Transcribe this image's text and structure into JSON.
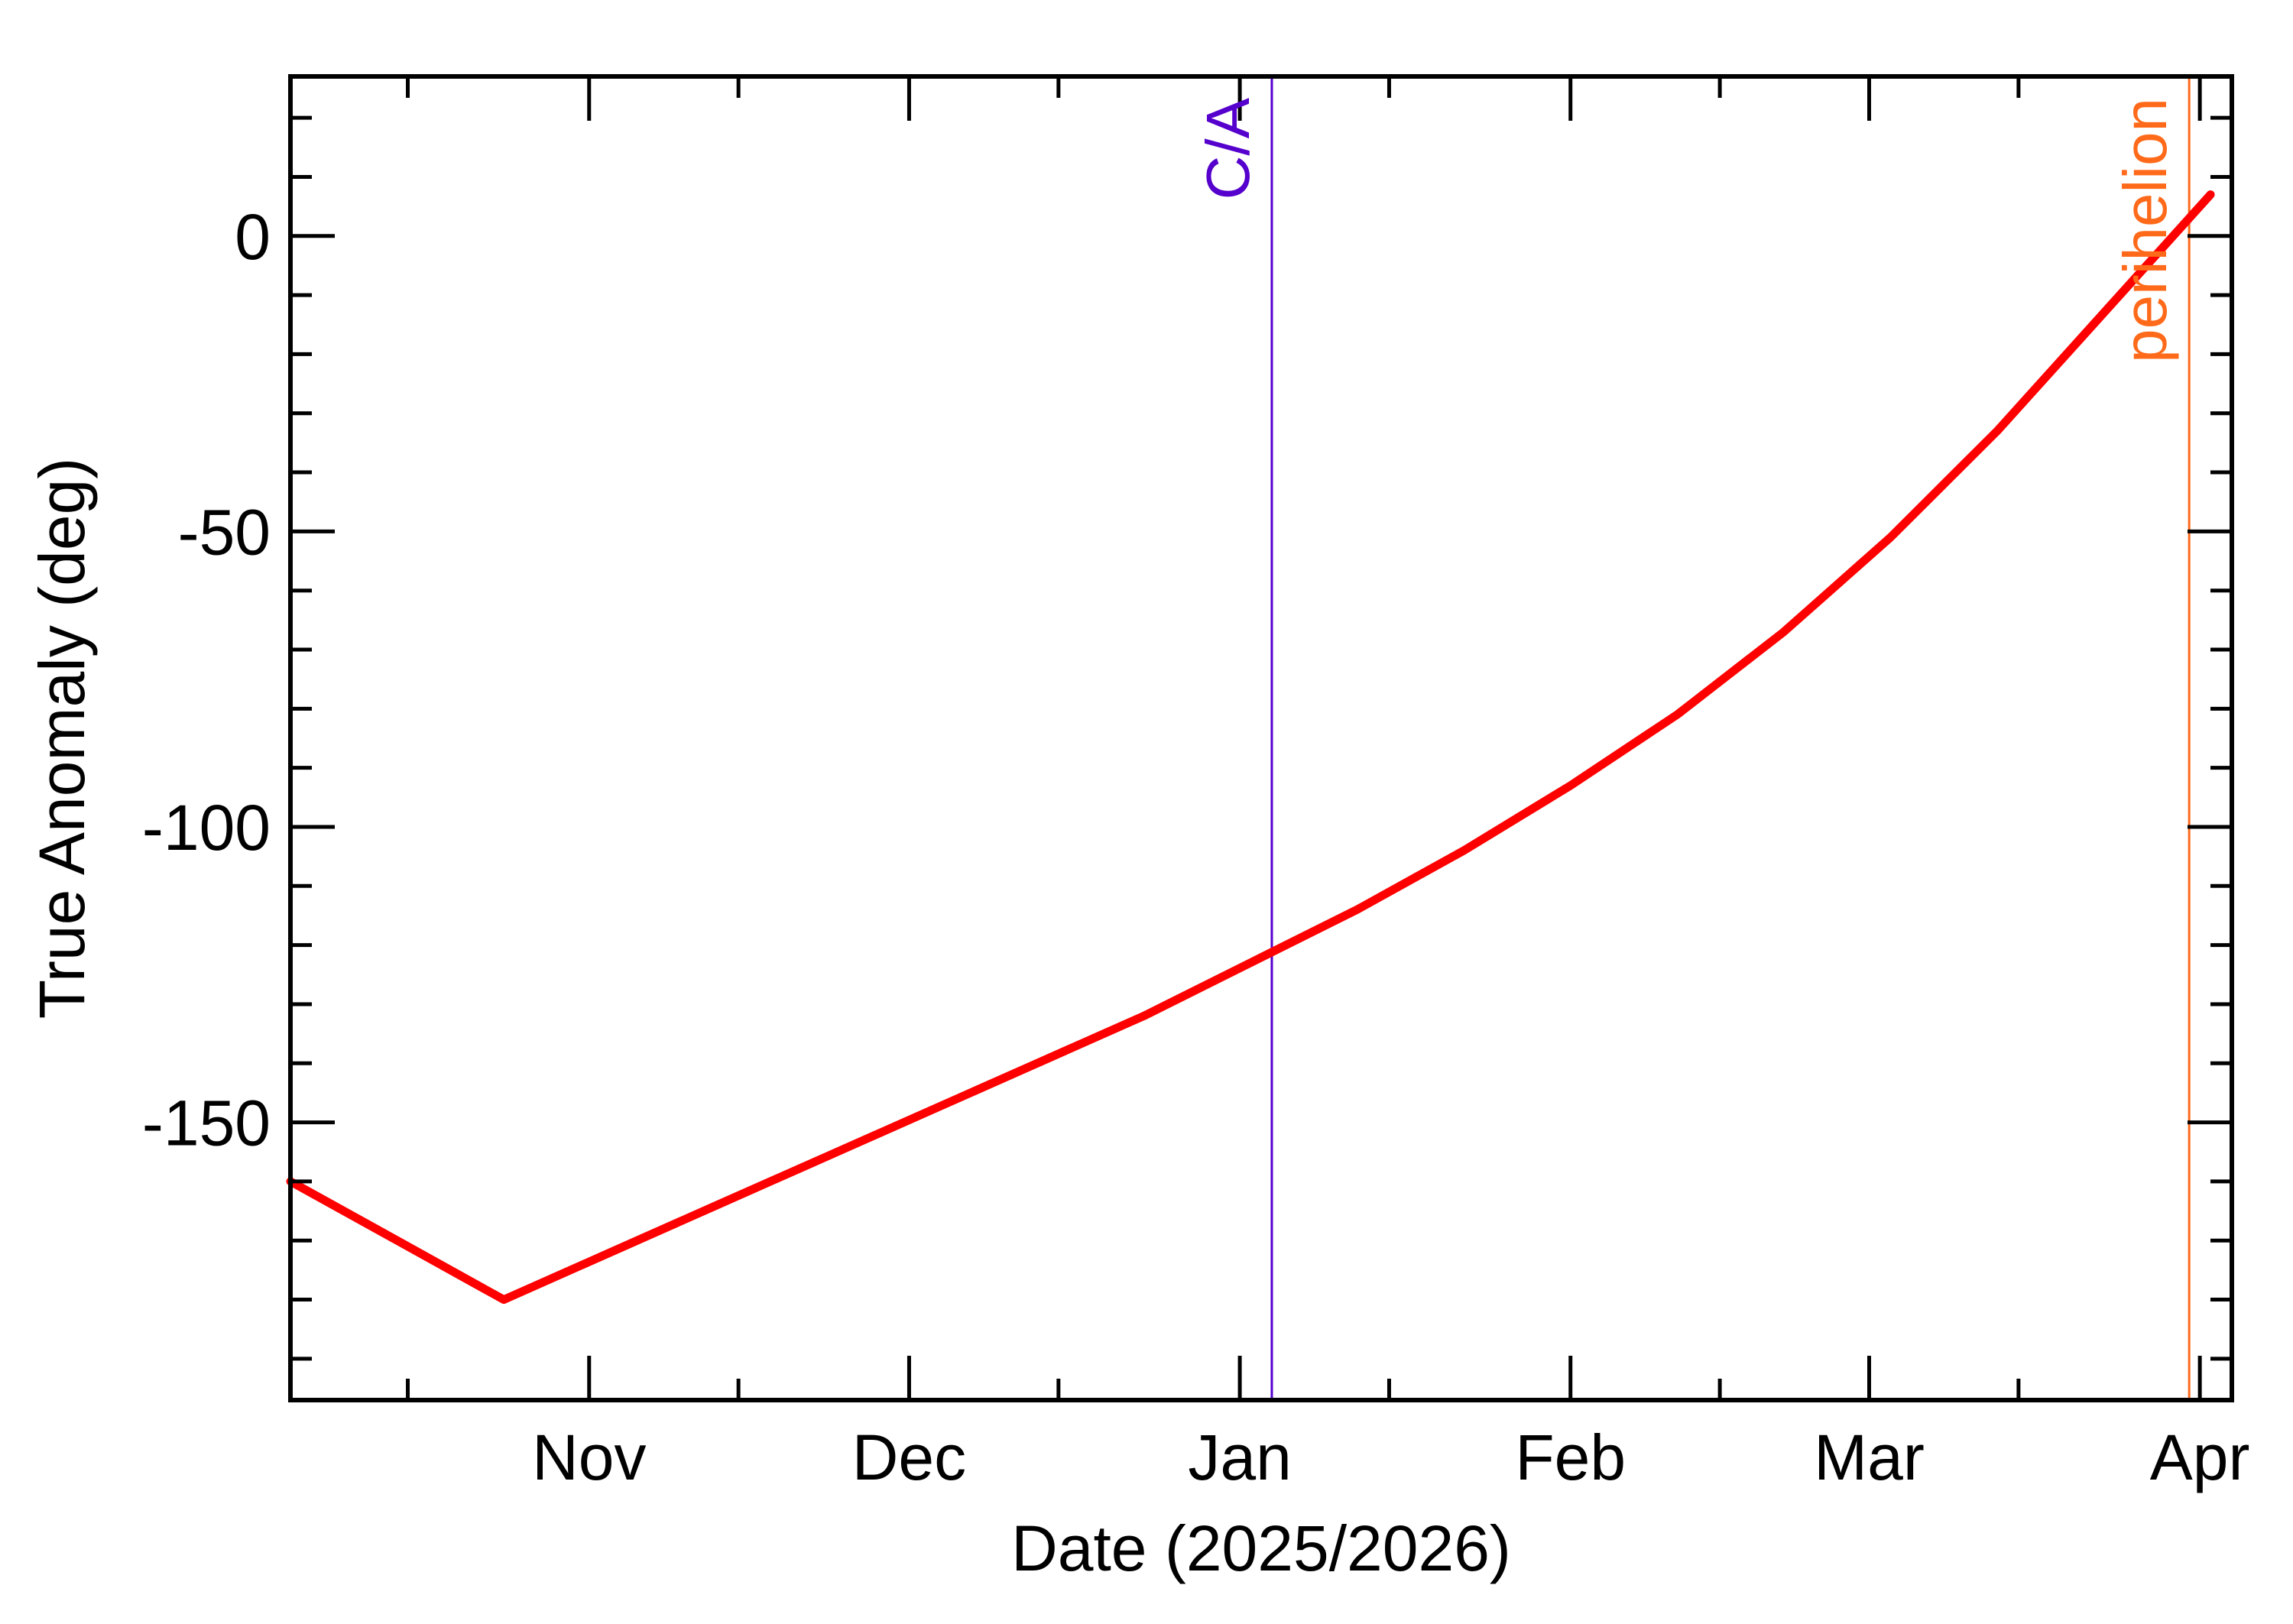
{
  "chart_data": {
    "type": "line",
    "title": "",
    "xlabel": "Date (2025/2026)",
    "ylabel": "True Anomaly (deg)",
    "x_axis": {
      "kind": "date",
      "range": [
        "2025-10-04",
        "2026-04-04"
      ],
      "major_ticks": [
        {
          "date": "2025-11-01",
          "label": "Nov"
        },
        {
          "date": "2025-12-01",
          "label": "Dec"
        },
        {
          "date": "2026-01-01",
          "label": "Jan"
        },
        {
          "date": "2026-02-01",
          "label": "Feb"
        },
        {
          "date": "2026-03-01",
          "label": "Mar"
        },
        {
          "date": "2026-04-01",
          "label": "Apr"
        }
      ],
      "minor_ticks": [
        "2025-10-15",
        "2025-11-15",
        "2025-12-15",
        "2026-01-15",
        "2026-02-15",
        "2026-03-15"
      ]
    },
    "y_axis": {
      "range": [
        -197,
        27
      ],
      "major_ticks": [
        {
          "value": 0,
          "label": "0"
        },
        {
          "value": -50,
          "label": "-50"
        },
        {
          "value": -100,
          "label": "-100"
        },
        {
          "value": -150,
          "label": "-150"
        }
      ],
      "minor_step": 10
    },
    "grid": false,
    "series": [
      {
        "color": "#ff0000",
        "points": [
          {
            "x": "2025-10-04",
            "y": -160
          },
          {
            "x": "2025-10-14",
            "y": -170
          },
          {
            "x": "2025-10-24",
            "y": -180
          },
          {
            "x": "2025-11-03",
            "y": -172
          },
          {
            "x": "2025-11-13",
            "y": -164
          },
          {
            "x": "2025-11-23",
            "y": -156
          },
          {
            "x": "2025-12-03",
            "y": -148
          },
          {
            "x": "2025-12-13",
            "y": -140
          },
          {
            "x": "2025-12-23",
            "y": -132
          },
          {
            "x": "2026-01-02",
            "y": -123
          },
          {
            "x": "2026-01-12",
            "y": -114
          },
          {
            "x": "2026-01-22",
            "y": -104
          },
          {
            "x": "2026-02-01",
            "y": -93
          },
          {
            "x": "2026-02-11",
            "y": -81
          },
          {
            "x": "2026-02-21",
            "y": -67
          },
          {
            "x": "2026-03-03",
            "y": -51
          },
          {
            "x": "2026-03-13",
            "y": -33
          },
          {
            "x": "2026-03-23",
            "y": -13
          },
          {
            "x": "2026-04-02",
            "y": 7
          }
        ]
      }
    ],
    "markers": [
      {
        "label": "C/A",
        "date": "2026-01-04",
        "color": "#5500cc"
      },
      {
        "label": "perihelion",
        "date": "2026-03-31",
        "color": "#ff6a1a"
      }
    ]
  }
}
